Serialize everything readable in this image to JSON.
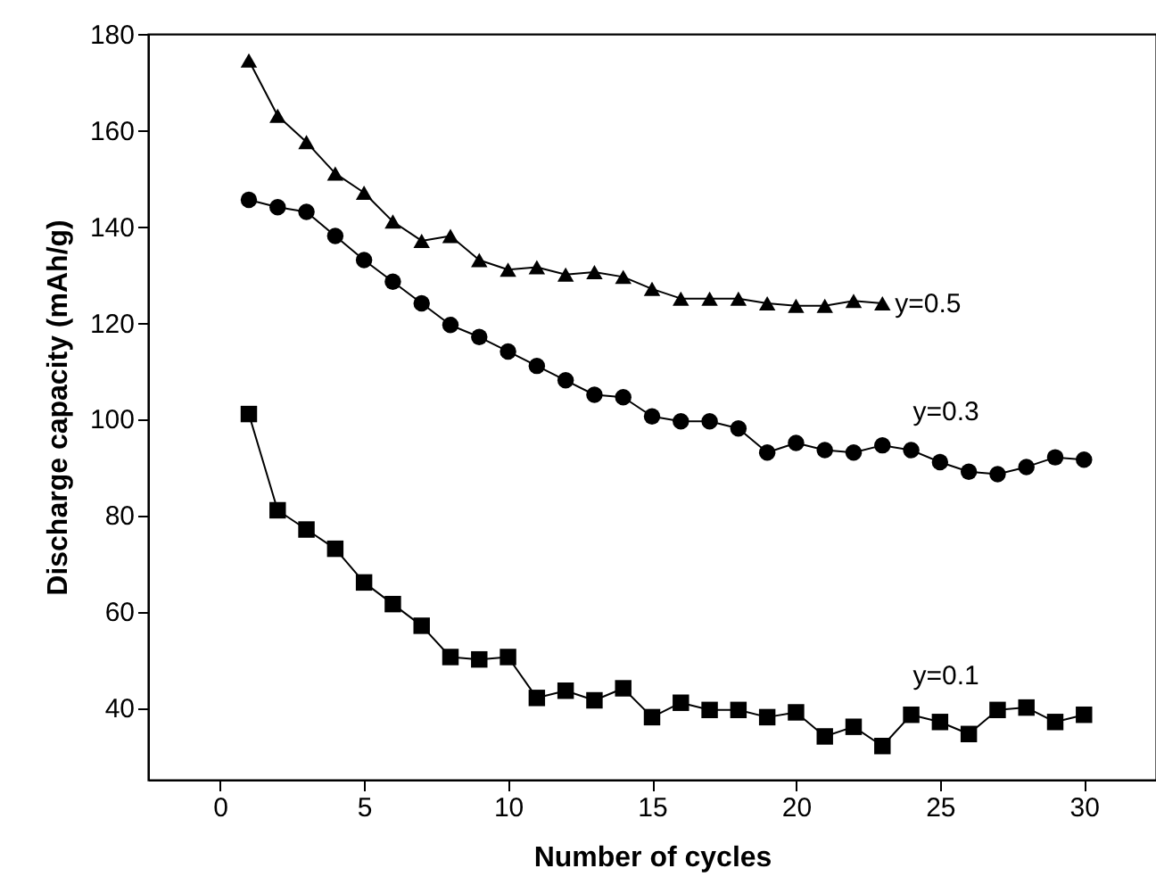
{
  "chart_data": {
    "type": "line",
    "xlabel": "Number of cycles",
    "ylabel": "Discharge capacity (mAh/g)",
    "x": [
      1,
      2,
      3,
      4,
      5,
      6,
      7,
      8,
      9,
      10,
      11,
      12,
      13,
      14,
      15,
      16,
      17,
      18,
      19,
      20,
      21,
      22,
      23,
      24,
      25,
      26,
      27,
      28,
      29,
      30
    ],
    "series": [
      {
        "name": "y=0.5",
        "color": "#000000",
        "marker": "triangle",
        "x": [
          1,
          2,
          3,
          4,
          5,
          6,
          7,
          8,
          9,
          10,
          11,
          12,
          13,
          14,
          15,
          16,
          17,
          18,
          19,
          20,
          21,
          22,
          23
        ],
        "values": [
          174.5,
          163,
          157.5,
          151,
          147,
          141,
          137,
          138,
          133,
          131,
          131.5,
          130,
          130.5,
          129.5,
          127,
          125,
          125,
          125,
          124,
          123.5,
          123.5,
          124.5,
          124
        ]
      },
      {
        "name": "y=0.3",
        "color": "#000000",
        "marker": "circle",
        "values": [
          145.5,
          144,
          143,
          138,
          133,
          128.5,
          124,
          119.5,
          117,
          114,
          111,
          108,
          105,
          104.5,
          100.5,
          99.5,
          99.5,
          98,
          93,
          95,
          93.5,
          93,
          94.5,
          93.5,
          91,
          89,
          88.5,
          90,
          92,
          91.5
        ]
      },
      {
        "name": "y=0.1",
        "color": "#000000",
        "marker": "square",
        "values": [
          101,
          81,
          77,
          73,
          66,
          61.5,
          57,
          50.5,
          50,
          50.5,
          42,
          43.5,
          41.5,
          44,
          38,
          41,
          39.5,
          39.5,
          38,
          39,
          34,
          36,
          32,
          38.5,
          37,
          34.5,
          39.5,
          40,
          37,
          38.5
        ]
      }
    ],
    "xlim": [
      -2.5,
      32.5
    ],
    "xticks": [
      0,
      5,
      10,
      15,
      20,
      25,
      30
    ],
    "ylim": [
      25,
      180
    ],
    "yticks": [
      40,
      60,
      80,
      100,
      120,
      140,
      160,
      180
    ],
    "grid": false,
    "line_style": "solid"
  }
}
